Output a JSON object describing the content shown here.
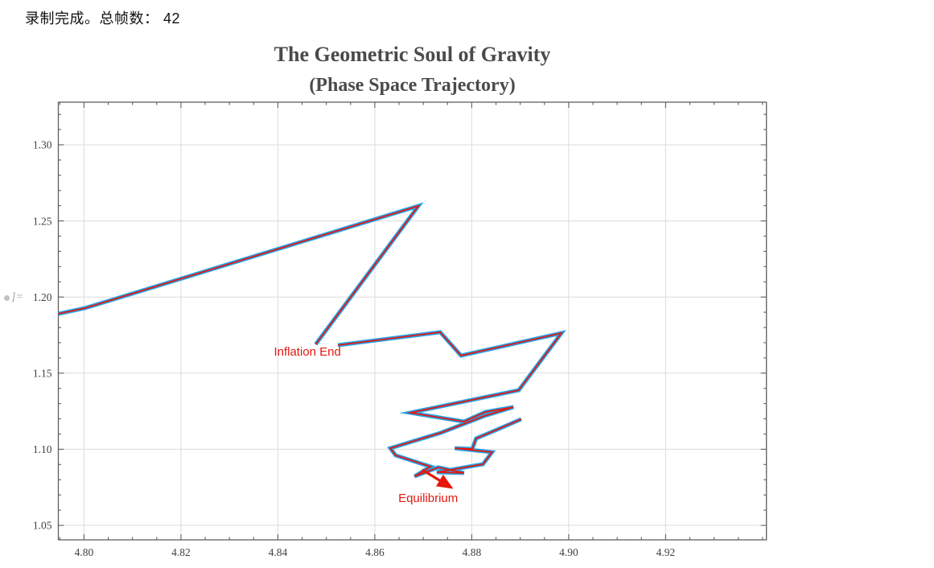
{
  "status": {
    "text": "录制完成。总帧数： 42"
  },
  "out_label": {
    "text": "]="
  },
  "chart_data": {
    "type": "line",
    "title": "The Geometric Soul of Gravity",
    "subtitle": "(Phase Space Trajectory)",
    "xlabel": "",
    "ylabel": "",
    "xlim": [
      4.7947,
      4.9408
    ],
    "ylim": [
      1.0405,
      1.328
    ],
    "x_ticks": [
      4.8,
      4.82,
      4.84,
      4.86,
      4.88,
      4.9,
      4.92
    ],
    "x_tick_labels": [
      "4.80",
      "4.82",
      "4.84",
      "4.86",
      "4.88",
      "4.90",
      "4.92"
    ],
    "y_ticks": [
      1.05,
      1.1,
      1.15,
      1.2,
      1.25,
      1.3
    ],
    "y_tick_labels": [
      "1.05",
      "1.10",
      "1.15",
      "1.20",
      "1.25",
      "1.30"
    ],
    "x_minor_step": 0.005,
    "y_minor_step": 0.01,
    "grid": true,
    "frame": true,
    "legend": "none",
    "series": [
      {
        "name": "phase-trajectory-base",
        "color": "#27a2e6",
        "width": 5.0
      },
      {
        "name": "phase-trajectory-overlay",
        "color": "#e3170f",
        "width": 1.8
      }
    ],
    "trajectory_segments": [
      [
        [
          4.7947,
          1.189
        ],
        [
          4.8002,
          1.1927
        ],
        [
          4.869,
          1.2598
        ],
        [
          4.8478,
          1.1689
        ]
      ],
      [
        [
          4.8524,
          1.1684
        ],
        [
          4.8735,
          1.1769
        ],
        [
          4.8778,
          1.1615
        ],
        [
          4.8985,
          1.1763
        ],
        [
          4.8897,
          1.1388
        ],
        [
          4.8673,
          1.124
        ],
        [
          4.8784,
          1.1182
        ],
        [
          4.8828,
          1.1245
        ],
        [
          4.8886,
          1.1277
        ],
        [
          4.8826,
          1.1219
        ],
        [
          4.8736,
          1.1108
        ],
        [
          4.8632,
          1.1007
        ],
        [
          4.8643,
          1.096
        ],
        [
          4.8715,
          1.0886
        ],
        [
          4.8682,
          1.0822
        ],
        [
          4.8731,
          1.0881
        ],
        [
          4.8784,
          1.0844
        ],
        [
          4.8728,
          1.0849
        ],
        [
          4.8823,
          1.0902
        ],
        [
          4.8842,
          1.0981
        ],
        [
          4.8765,
          1.1007
        ],
        [
          4.8801,
          1.1002
        ],
        [
          4.8809,
          1.1071
        ],
        [
          4.8856,
          1.1134
        ],
        [
          4.8902,
          1.1198
        ]
      ]
    ],
    "annotations": [
      {
        "id": "inflation-end",
        "text": "Inflation End",
        "x": 4.8461,
        "y": 1.1642,
        "color": "#e3170f",
        "font_size": 15
      },
      {
        "id": "equilibrium",
        "text": "Equilibrium",
        "x": 4.871,
        "y": 1.068,
        "color": "#e3170f",
        "font_size": 15
      }
    ],
    "arrow": {
      "from": [
        4.8698,
        1.0865
      ],
      "to": [
        4.8762,
        1.074
      ],
      "color": "#e8150a"
    },
    "colors": {
      "frame": "#5f5f5f",
      "grid": "#dcdcdc",
      "tick_label": "#3f3f3f",
      "title": "#4a4a4a",
      "background": "#ffffff"
    }
  }
}
